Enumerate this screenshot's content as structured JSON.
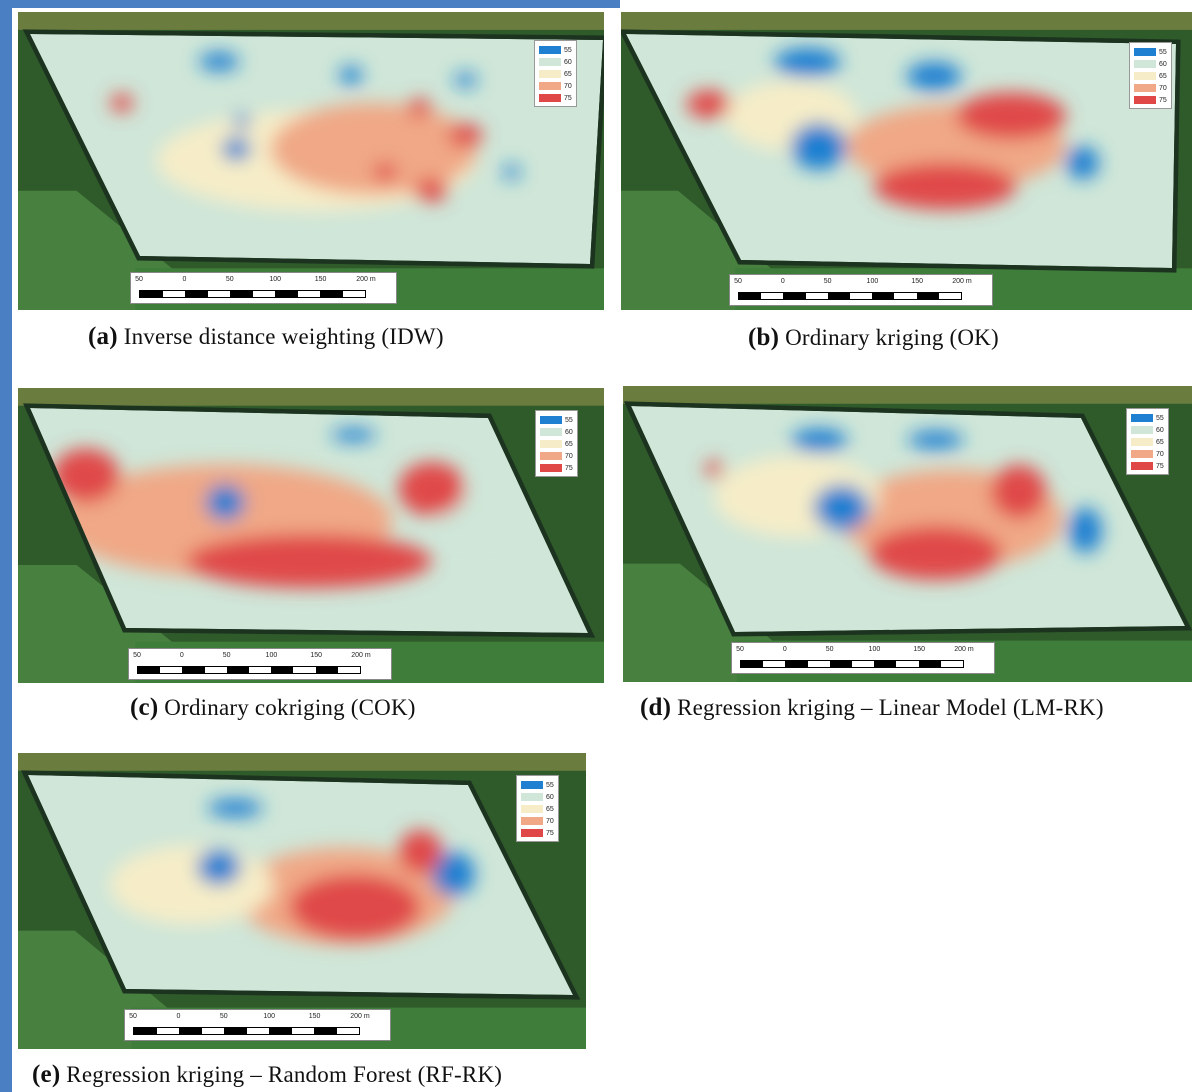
{
  "legend": {
    "entries": [
      {
        "label": "55",
        "color": "#1f7fd1"
      },
      {
        "label": "60",
        "color": "#cfe6d8"
      },
      {
        "label": "65",
        "color": "#f6edc8"
      },
      {
        "label": "70",
        "color": "#f0a886"
      },
      {
        "label": "75",
        "color": "#e04848"
      }
    ]
  },
  "scalebar": {
    "labels": [
      "50",
      "0",
      "50",
      "100",
      "150",
      "200 m"
    ]
  },
  "panels": [
    {
      "letter": "(a)",
      "text": " Inverse distance weighting (IDW)"
    },
    {
      "letter": "(b)",
      "text": " Ordinary kriging (OK)"
    },
    {
      "letter": "(c)",
      "text": " Ordinary cokriging (COK)"
    },
    {
      "letter": "(d)",
      "text": " Regression kriging – Linear Model (LM-RK)"
    },
    {
      "letter": "(e)",
      "text": " Regression kriging – Random Forest (RF-RK)"
    }
  ],
  "colors": {
    "low": "#1f7fd1",
    "mid_low": "#cfe6d8",
    "mid": "#f6edc8",
    "mid_high": "#f0a886",
    "high": "#e04848",
    "vegetation": "#2f5a2a",
    "grass": "#3f7d3a",
    "treeline": "#1c3320"
  }
}
